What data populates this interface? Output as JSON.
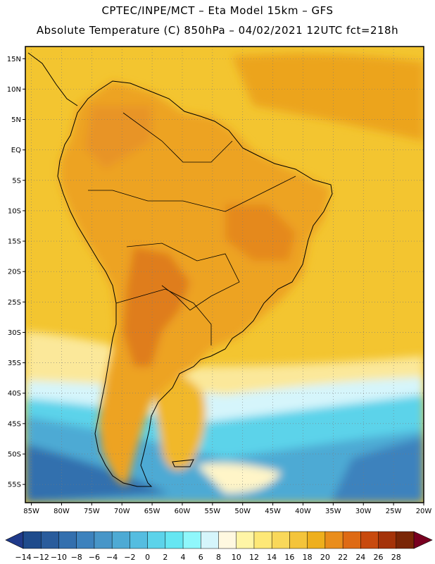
{
  "header": {
    "line1": "CPTEC/INPE/MCT –  Eta Model 15km – GFS",
    "line2": "Absolute Temperature (C) 850hPa – 04/02/2021 12UTC fct=218h"
  },
  "map": {
    "lat_labels": [
      "15N",
      "10N",
      "5N",
      "EQ",
      "5S",
      "10S",
      "15S",
      "20S",
      "25S",
      "30S",
      "35S",
      "40S",
      "45S",
      "50S",
      "55S"
    ],
    "lat_values": [
      15,
      10,
      5,
      0,
      -5,
      -10,
      -15,
      -20,
      -25,
      -30,
      -35,
      -40,
      -45,
      -50,
      -55
    ],
    "lon_labels": [
      "85W",
      "80W",
      "75W",
      "70W",
      "65W",
      "60W",
      "55W",
      "50W",
      "45W",
      "40W",
      "35W",
      "30W",
      "25W",
      "20W"
    ],
    "lon_values": [
      -85,
      -80,
      -75,
      -70,
      -65,
      -60,
      -55,
      -50,
      -45,
      -40,
      -35,
      -30,
      -25,
      -20
    ],
    "lat_range": [
      -58,
      17
    ],
    "lon_range": [
      -86,
      -20
    ]
  },
  "colorbar": {
    "labels": [
      "-14",
      "-12",
      "-10",
      "-8",
      "-6",
      "-4",
      "-2",
      "0",
      "2",
      "4",
      "6",
      "8",
      "10",
      "12",
      "14",
      "16",
      "18",
      "20",
      "22",
      "24",
      "26",
      "28"
    ],
    "colors": [
      "#1e4b8c",
      "#2a5c9c",
      "#336fae",
      "#3d82bd",
      "#4896c8",
      "#4eaad4",
      "#55bde0",
      "#5cd3ea",
      "#66e6f2",
      "#8ff7fb",
      "#d5f5fb",
      "#fff8e0",
      "#fff5a6",
      "#fde877",
      "#f9d85a",
      "#f4c43b",
      "#eeaf1d",
      "#e98d1c",
      "#de6a14",
      "#c84a0e",
      "#a43309",
      "#7a2606"
    ],
    "low_end_color": "#1f3a8a",
    "high_end_color": "#780020"
  },
  "colors": {
    "ocean_warm": "#f3c530",
    "land_warm": "#eeb01c",
    "land_hot": "#e99220",
    "cold_band": "#5cd3ea",
    "coldest": "#336fae"
  }
}
